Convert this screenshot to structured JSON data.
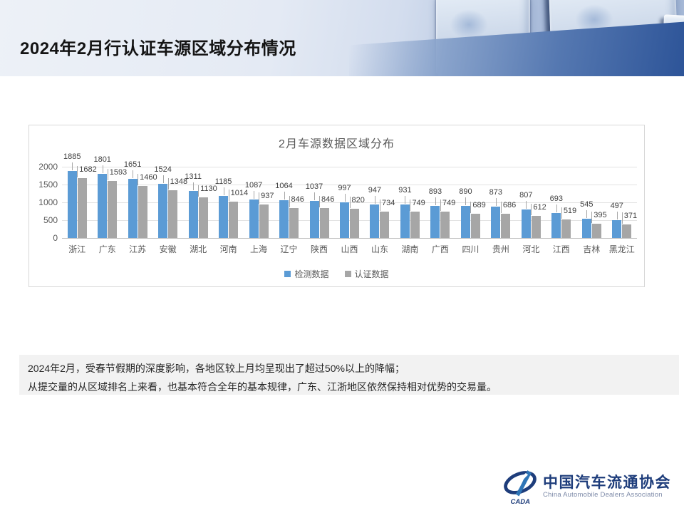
{
  "header": {
    "title": "2024年2月行认证车源区域分布情况"
  },
  "chart_data": {
    "type": "bar",
    "title": "2月车源数据区域分布",
    "categories": [
      "浙江",
      "广东",
      "江苏",
      "安徽",
      "湖北",
      "河南",
      "上海",
      "辽宁",
      "陕西",
      "山西",
      "山东",
      "湖南",
      "广西",
      "四川",
      "贵州",
      "河北",
      "江西",
      "吉林",
      "黑龙江"
    ],
    "series": [
      {
        "name": "检测数据",
        "color": "#5B9BD5",
        "values": [
          1885,
          1801,
          1651,
          1524,
          1311,
          1185,
          1087,
          1064,
          1037,
          997,
          947,
          931,
          893,
          890,
          873,
          807,
          693,
          545,
          497
        ]
      },
      {
        "name": "认证数据",
        "color": "#A6A6A6",
        "values": [
          1682,
          1593,
          1460,
          1348,
          1130,
          1014,
          937,
          846,
          846,
          820,
          734,
          749,
          749,
          689,
          686,
          612,
          519,
          395,
          371
        ]
      }
    ],
    "xlabel": "",
    "ylabel": "",
    "ylim": [
      0,
      2000
    ],
    "yticks": [
      0,
      500,
      1000,
      1500,
      2000
    ],
    "grid": true,
    "legend_position": "bottom",
    "data_labels": true
  },
  "summary": {
    "line1": "2024年2月，受春节假期的深度影响，各地区较上月均呈现出了超过50%以上的降幅；",
    "line2": "从提交量的从区域排名上来看，也基本符合全年的基本规律，广东、江浙地区依然保持相对优势的交易量。"
  },
  "footer_logo": {
    "mark_text": "CADA",
    "name_cn": "中国汽车流通协会",
    "name_en": "China Automobile Dealers Association"
  }
}
